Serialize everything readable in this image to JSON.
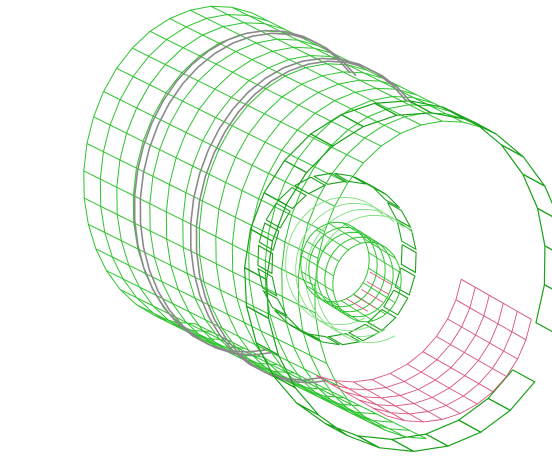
{
  "diagram": {
    "kind": "wireframe-multi-layer-cylinder",
    "colors": {
      "mesh": "#2fc42f",
      "mesh_light": "#7fe07f",
      "tiles": "#1aa21a",
      "inner_back": "#d9547a",
      "rings": "#8a8a8a"
    },
    "layers": [
      {
        "name": "outer-barrel",
        "rings": 2
      },
      {
        "name": "middle-layer"
      },
      {
        "name": "inner-layer"
      },
      {
        "name": "innermost-layer"
      }
    ]
  }
}
